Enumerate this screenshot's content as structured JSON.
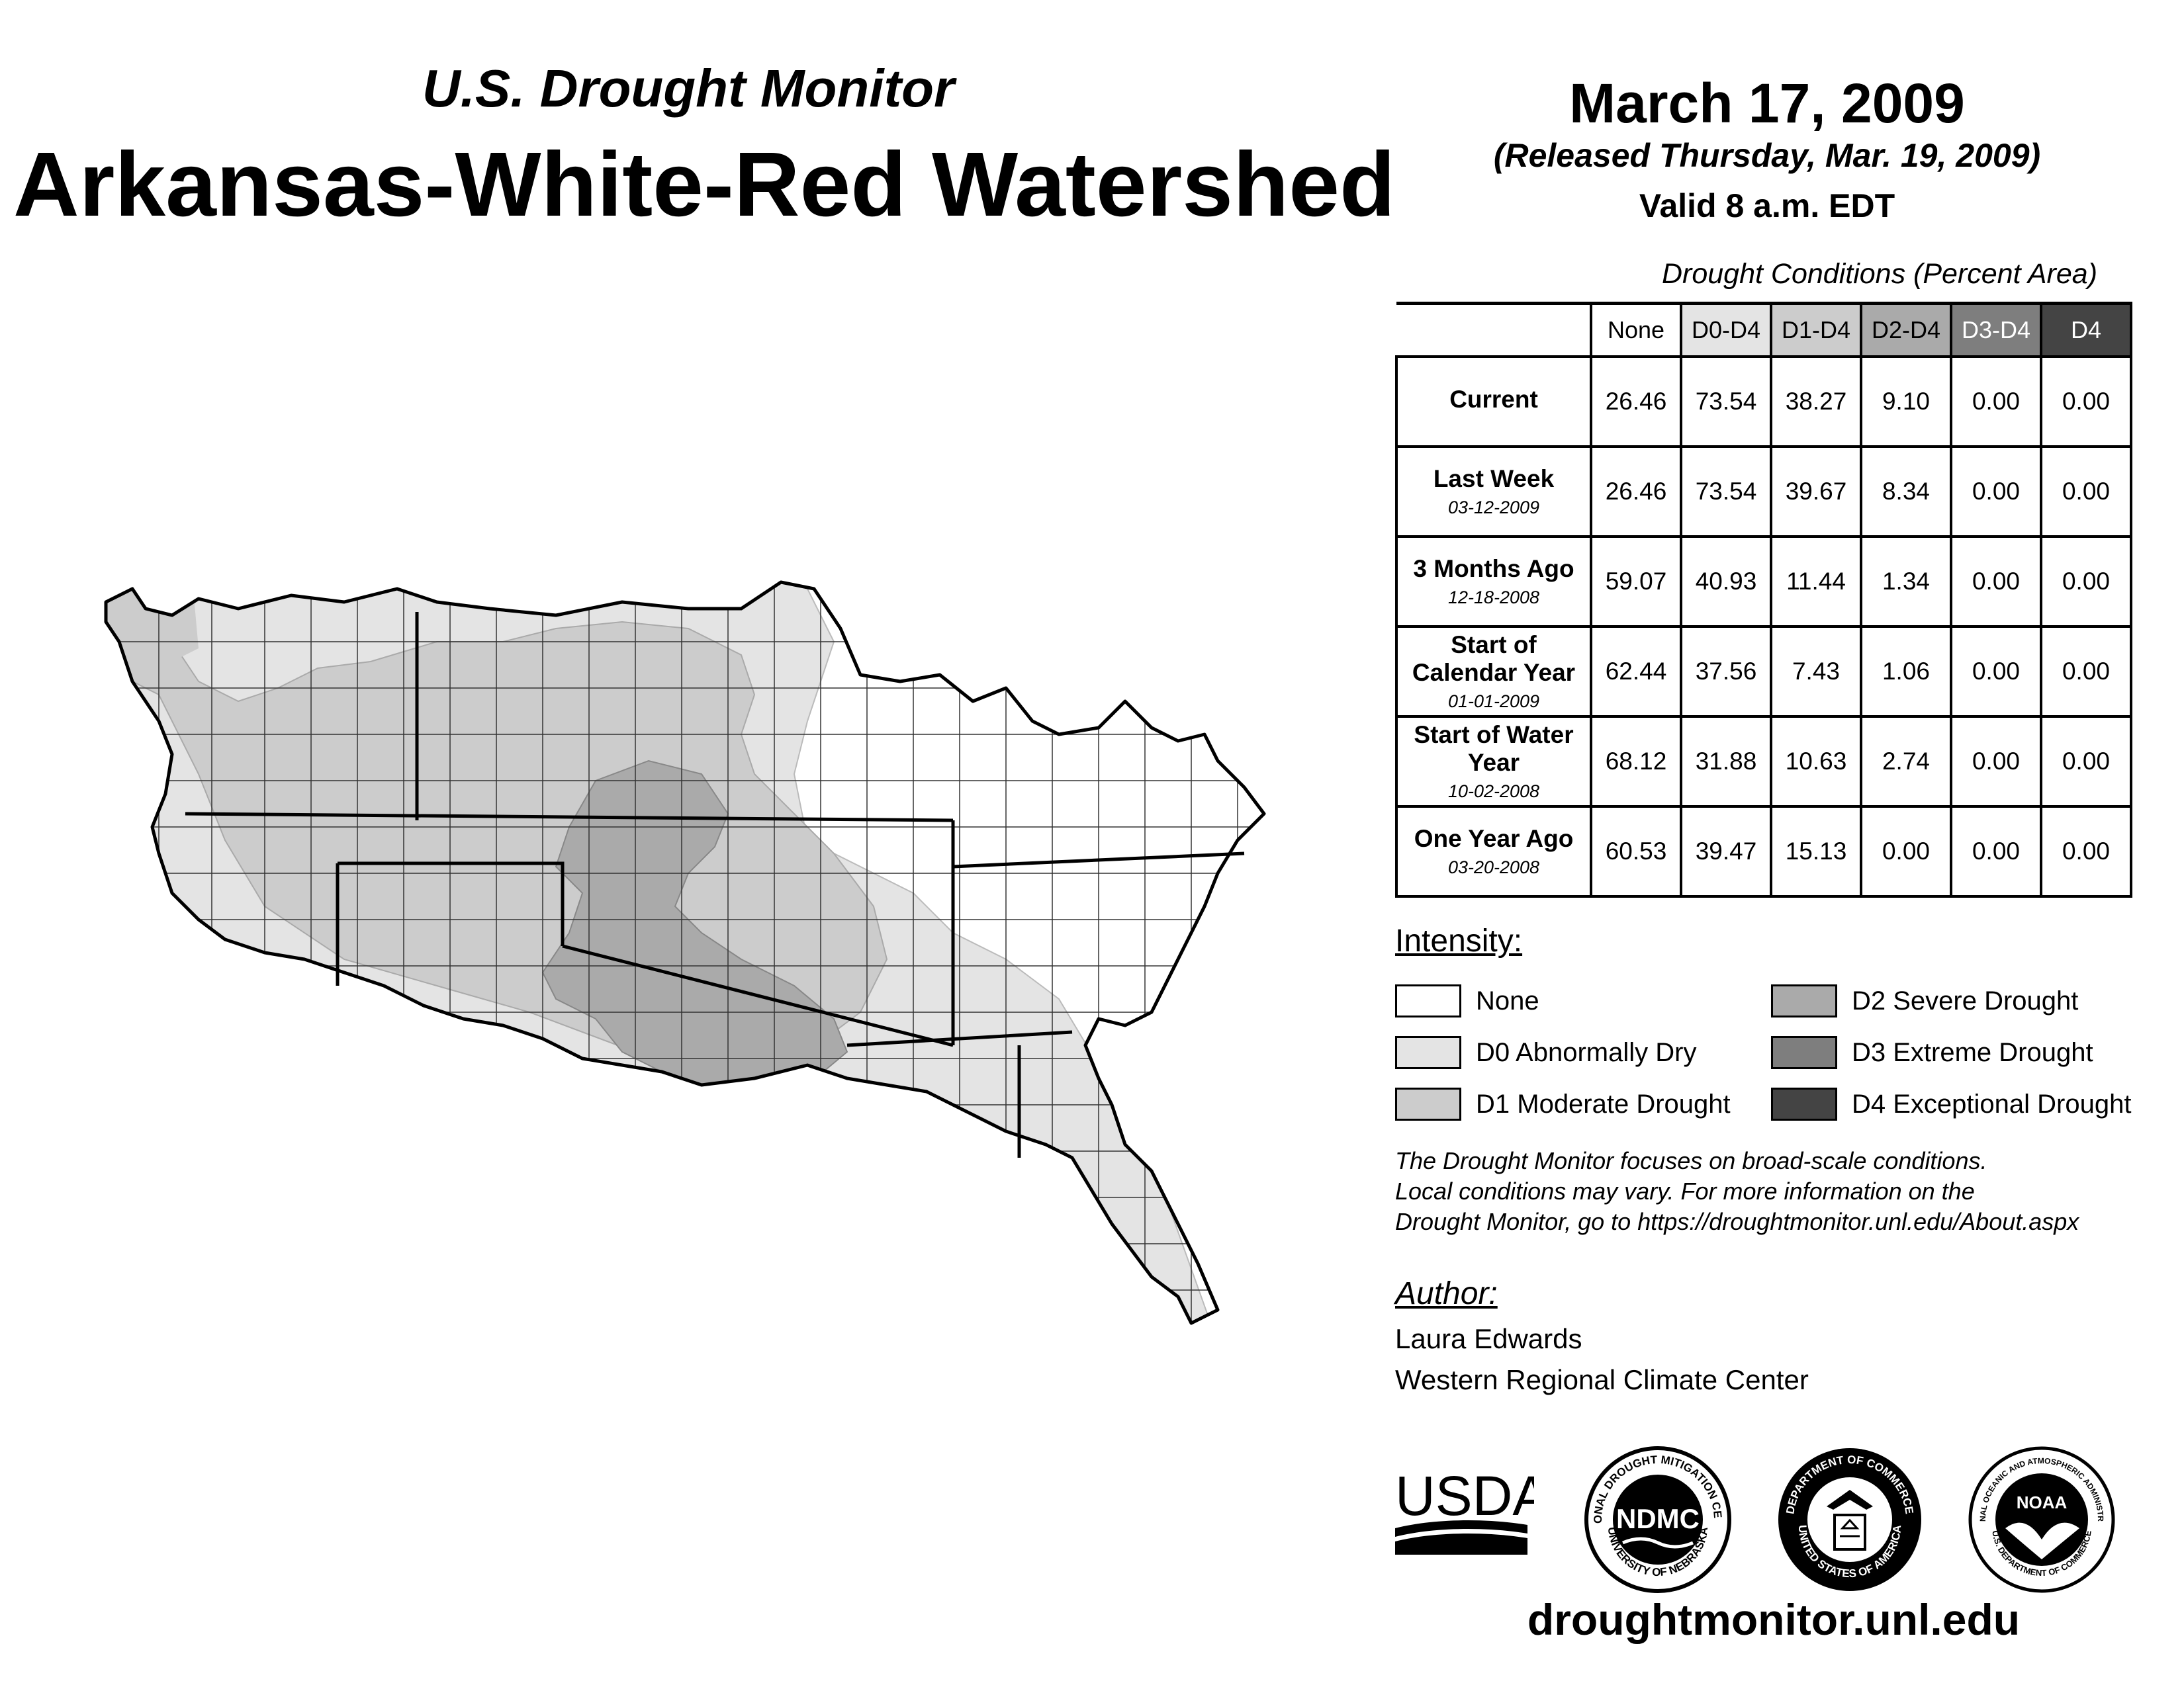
{
  "header": {
    "subtitle": "U.S. Drought Monitor",
    "title": "Arkansas-White-Red Watershed"
  },
  "date_block": {
    "date": "March 17, 2009",
    "released": "(Released Thursday, Mar. 19, 2009)",
    "valid": "Valid 8 a.m. EDT"
  },
  "conditions": {
    "title": "Drought Conditions (Percent Area)",
    "columns": [
      {
        "label": "None",
        "fill": "#ffffff",
        "text_color": "#000000"
      },
      {
        "label": "D0-D4",
        "fill": "#e4e4e4",
        "text_color": "#000000"
      },
      {
        "label": "D1-D4",
        "fill": "#cccccc",
        "text_color": "#000000"
      },
      {
        "label": "D2-D4",
        "fill": "#aaaaaa",
        "text_color": "#000000"
      },
      {
        "label": "D3-D4",
        "fill": "#7e7e7e",
        "text_color": "#ffffff"
      },
      {
        "label": "D4",
        "fill": "#444444",
        "text_color": "#ffffff"
      }
    ],
    "rows": [
      {
        "label": "Current",
        "date": "",
        "values": [
          "26.46",
          "73.54",
          "38.27",
          "9.10",
          "0.00",
          "0.00"
        ]
      },
      {
        "label": "Last Week",
        "date": "03-12-2009",
        "values": [
          "26.46",
          "73.54",
          "39.67",
          "8.34",
          "0.00",
          "0.00"
        ]
      },
      {
        "label": "3 Months Ago",
        "date": "12-18-2008",
        "values": [
          "59.07",
          "40.93",
          "11.44",
          "1.34",
          "0.00",
          "0.00"
        ]
      },
      {
        "label": "Start of Calendar Year",
        "date": "01-01-2009",
        "values": [
          "62.44",
          "37.56",
          "7.43",
          "1.06",
          "0.00",
          "0.00"
        ]
      },
      {
        "label": "Start of Water Year",
        "date": "10-02-2008",
        "values": [
          "68.12",
          "31.88",
          "10.63",
          "2.74",
          "0.00",
          "0.00"
        ]
      },
      {
        "label": "One Year Ago",
        "date": "03-20-2008",
        "values": [
          "60.53",
          "39.47",
          "15.13",
          "0.00",
          "0.00",
          "0.00"
        ]
      }
    ]
  },
  "intensity": {
    "title": "Intensity:",
    "items": [
      {
        "label": "None",
        "color": "#ffffff"
      },
      {
        "label": "D0 Abnormally Dry",
        "color": "#e4e4e4"
      },
      {
        "label": "D1 Moderate Drought",
        "color": "#cccccc"
      },
      {
        "label": "D2 Severe Drought",
        "color": "#aaaaaa"
      },
      {
        "label": "D3 Extreme Drought",
        "color": "#7e7e7e"
      },
      {
        "label": "D4 Exceptional Drought",
        "color": "#444444"
      }
    ]
  },
  "note": {
    "line1": "The Drought Monitor focuses on broad-scale conditions.",
    "line2": "Local conditions may vary. For more information on the",
    "line3": "Drought Monitor, go to https://droughtmonitor.unl.edu/About.aspx"
  },
  "author": {
    "title": "Author:",
    "name": "Laura Edwards",
    "org": "Western Regional Climate Center"
  },
  "logos": {
    "usda": "USDA",
    "ndmc": "NDMC",
    "ndmc_ring_top": "NATIONAL DROUGHT MITIGATION CENTER",
    "ndmc_ring_bottom": "UNIVERSITY OF NEBRASKA",
    "doc_ring_top": "DEPARTMENT OF COMMERCE",
    "doc_ring_bottom": "UNITED STATES OF AMERICA",
    "noaa": "NOAA",
    "noaa_ring_top": "NATIONAL OCEANIC AND ATMOSPHERIC ADMINISTRATION",
    "noaa_ring_bottom": "U.S. DEPARTMENT OF COMMERCE"
  },
  "footer": {
    "url": "droughtmonitor.unl.edu"
  },
  "map": {
    "region": "Arkansas-White-Red Watershed",
    "colors": {
      "none": "#ffffff",
      "d0": "#e4e4e4",
      "d1": "#cccccc",
      "d2": "#aaaaaa",
      "outline": "#000000"
    }
  }
}
